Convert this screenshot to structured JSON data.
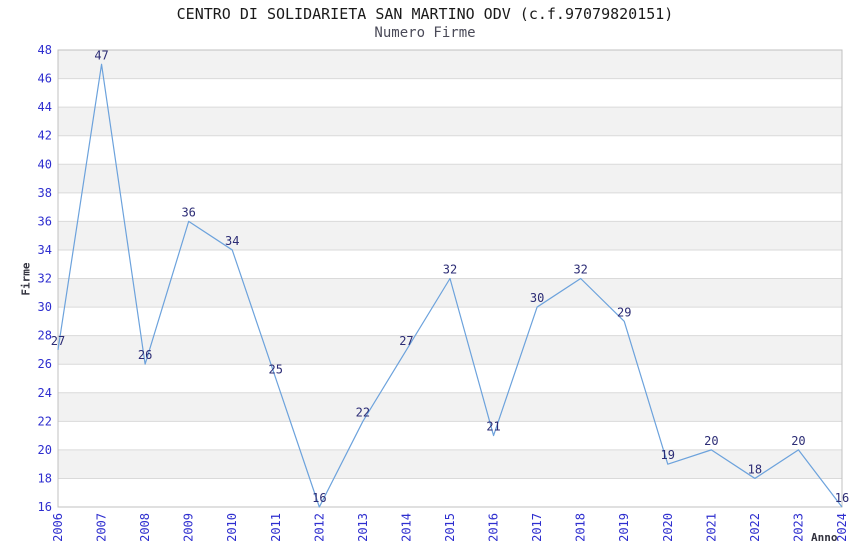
{
  "chart_data": {
    "type": "line",
    "title": "CENTRO DI SOLIDARIETA SAN MARTINO ODV (c.f.97079820151)",
    "subtitle": "Numero Firme",
    "xlabel": "Anno",
    "ylabel": "Firme",
    "categories": [
      "2006",
      "2007",
      "2008",
      "2009",
      "2010",
      "2011",
      "2012",
      "2013",
      "2014",
      "2015",
      "2016",
      "2017",
      "2018",
      "2019",
      "2020",
      "2021",
      "2022",
      "2023",
      "2024"
    ],
    "values": [
      27,
      47,
      26,
      36,
      34,
      25,
      16,
      22,
      27,
      32,
      21,
      30,
      32,
      29,
      19,
      20,
      18,
      20,
      16
    ],
    "ylim": [
      16,
      48
    ],
    "ytick_step": 2,
    "grid": true,
    "legend": false,
    "band_alternating": true,
    "colors": {
      "line": "#6ca2dc",
      "tick_label": "#2e2ecf",
      "point_label": "#2c2c75",
      "band": "#f2f2f2",
      "gridline": "#dadada",
      "plot_border": "#c0c0c0",
      "title": "#1a1a1a",
      "subtitle": "#4a4a58",
      "axis_label": "#33333f"
    }
  }
}
